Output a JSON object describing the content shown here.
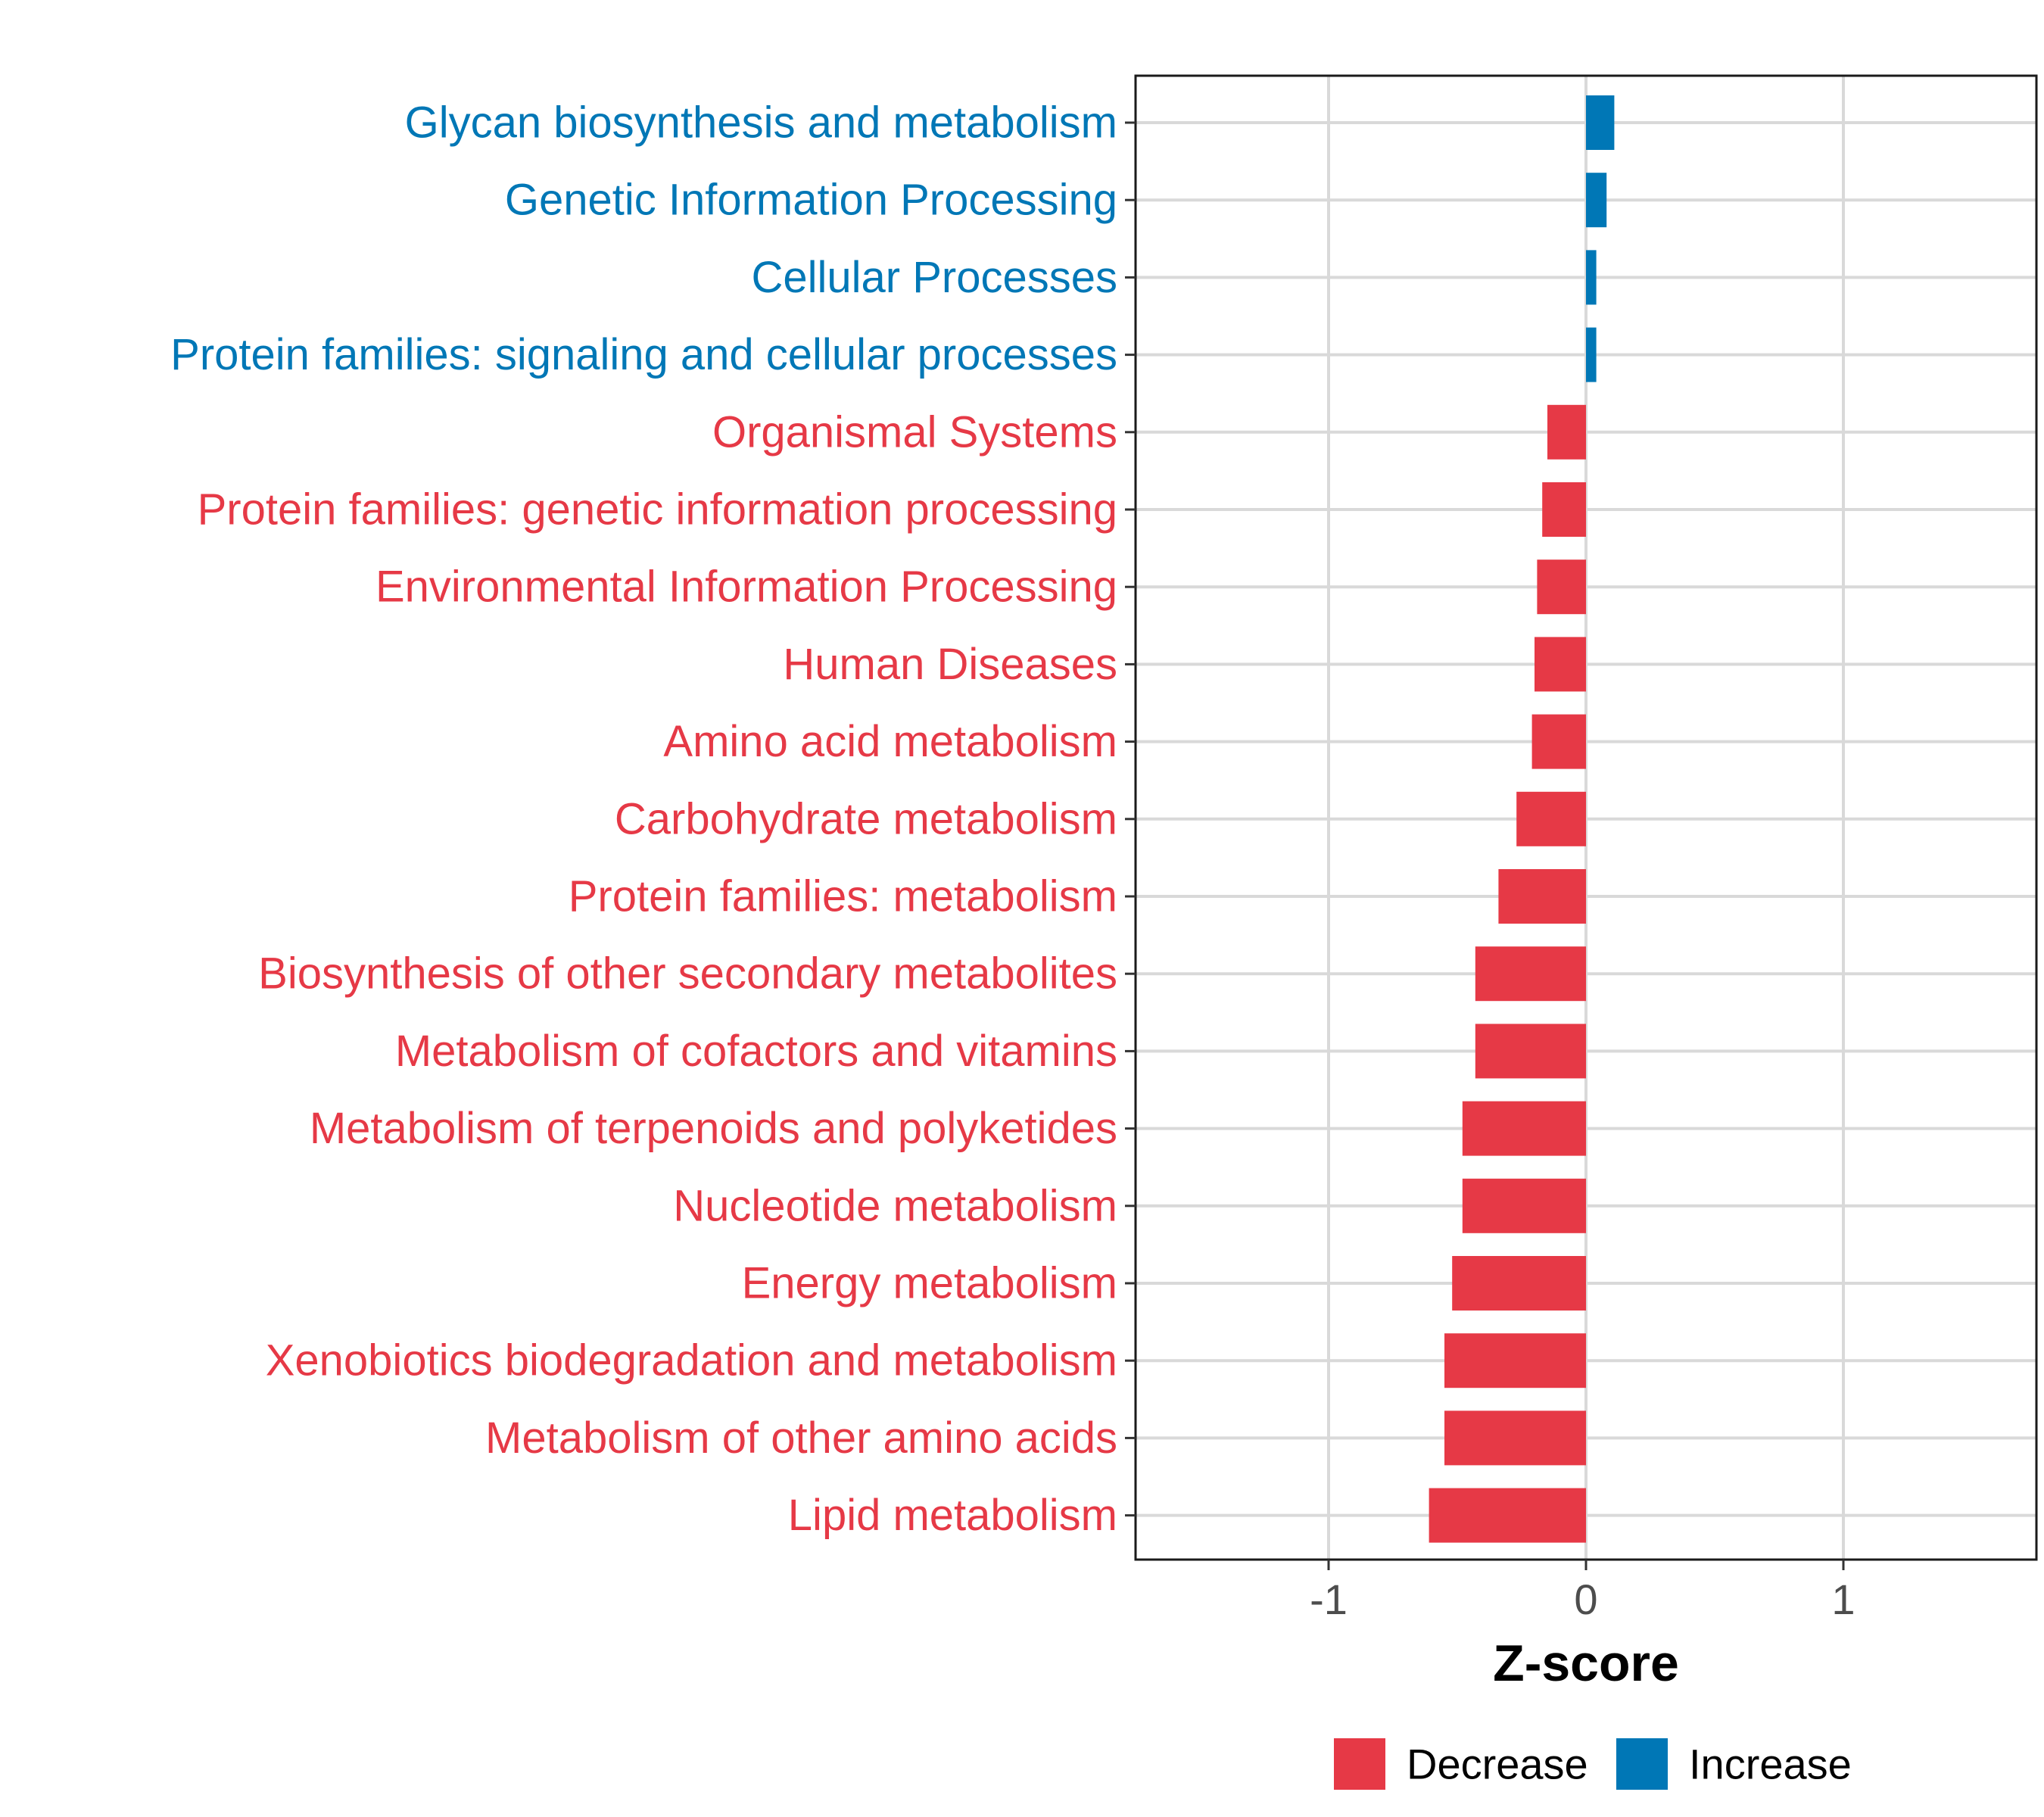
{
  "chart_data": {
    "type": "bar",
    "orientation": "horizontal",
    "title": "",
    "xlabel": "Z-score",
    "ylabel": "",
    "xlim": [
      -1.75,
      1.75
    ],
    "xticks": [
      -1,
      0,
      1
    ],
    "xtick_labels": [
      "-1",
      "0",
      "1"
    ],
    "grid": true,
    "legend_position": "bottom",
    "colors": {
      "Decrease": "#e63946",
      "Increase": "#0077b6"
    },
    "legend": [
      {
        "name": "Decrease",
        "color": "#e63946"
      },
      {
        "name": "Increase",
        "color": "#0077b6"
      }
    ],
    "categories": [
      "Glycan biosynthesis and metabolism",
      "Genetic Information Processing",
      "Cellular Processes",
      "Protein families: signaling and cellular processes",
      "Organismal Systems",
      "Protein families: genetic information processing",
      "Environmental Information Processing",
      "Human Diseases",
      "Amino acid metabolism",
      "Carbohydrate metabolism",
      "Protein families: metabolism",
      "Biosynthesis of other secondary metabolites",
      "Metabolism of cofactors and vitamins",
      "Metabolism of terpenoids and polyketides",
      "Nucleotide metabolism",
      "Energy metabolism",
      "Xenobiotics biodegradation and metabolism",
      "Metabolism of other amino acids",
      "Lipid metabolism"
    ],
    "values": [
      0.11,
      0.08,
      0.04,
      0.04,
      -0.15,
      -0.17,
      -0.19,
      -0.2,
      -0.21,
      -0.27,
      -0.34,
      -0.43,
      -0.43,
      -0.48,
      -0.48,
      -0.52,
      -0.55,
      -0.55,
      -0.61
    ],
    "groups": [
      "Increase",
      "Increase",
      "Increase",
      "Increase",
      "Decrease",
      "Decrease",
      "Decrease",
      "Decrease",
      "Decrease",
      "Decrease",
      "Decrease",
      "Decrease",
      "Decrease",
      "Decrease",
      "Decrease",
      "Decrease",
      "Decrease",
      "Decrease",
      "Decrease"
    ]
  }
}
